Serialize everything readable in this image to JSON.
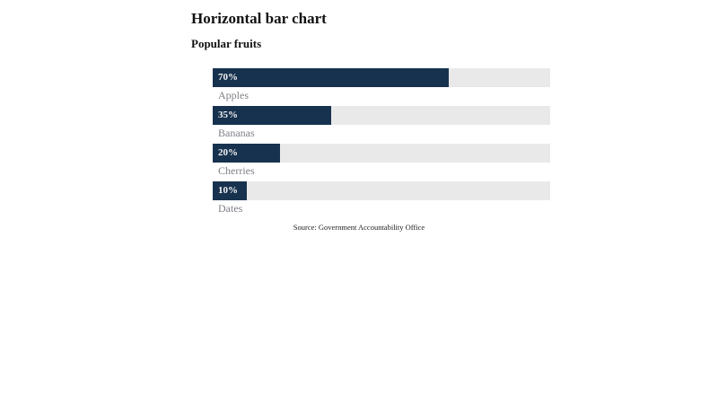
{
  "page": {
    "title": "Horizontal bar chart",
    "subtitle": "Popular fruits",
    "source_note": "Source: Government Accountability Office"
  },
  "colors": {
    "bar_fill": "#17324e",
    "bar_track": "#e9e9e9",
    "category_label": "#7f7f87",
    "value_label": "#f4f4f4",
    "text": "#111111"
  },
  "chart_data": {
    "type": "bar",
    "orientation": "horizontal",
    "title": "Horizontal bar chart",
    "subtitle": "Popular fruits",
    "categories": [
      "Apples",
      "Bananas",
      "Cherries",
      "Dates"
    ],
    "values": [
      70,
      35,
      20,
      10
    ],
    "value_labels": [
      "70%",
      "35%",
      "20%",
      "10%"
    ],
    "unit": "%",
    "xlim": [
      0,
      100
    ],
    "grid": false,
    "legend": false,
    "annotations": [
      "Source: Government Accountability Office"
    ]
  }
}
